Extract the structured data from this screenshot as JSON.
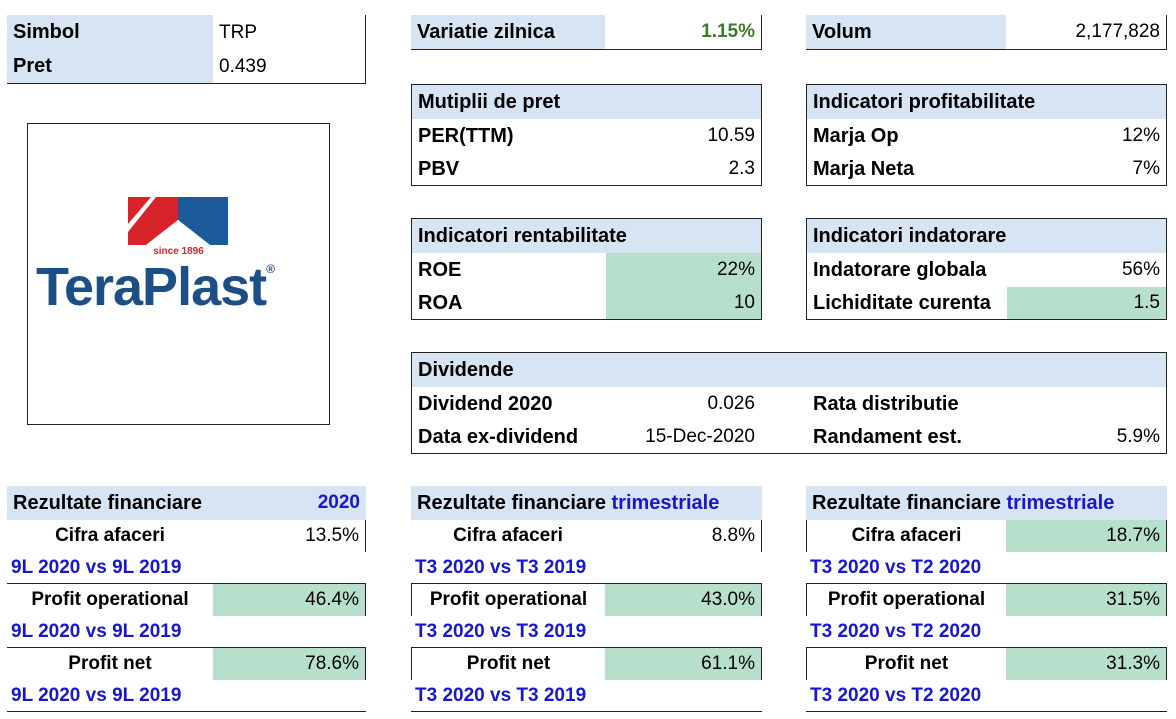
{
  "info": {
    "simbol_label": "Simbol",
    "simbol_value": "TRP",
    "pret_label": "Pret",
    "pret_value": "0.439"
  },
  "variatie": {
    "label": "Variatie zilnica",
    "value": "1.15%"
  },
  "volum": {
    "label": "Volum",
    "value": "2,177,828"
  },
  "logo": {
    "since": "since 1896",
    "brand": "TeraPlast",
    "reg": "®"
  },
  "multipli": {
    "title": "Mutiplii de pret",
    "rows": [
      {
        "label": "PER(TTM)",
        "value": "10.59"
      },
      {
        "label": "PBV",
        "value": "2.3"
      }
    ]
  },
  "profitabilitate": {
    "title": "Indicatori profitabilitate",
    "rows": [
      {
        "label": "Marja Op",
        "value": "12%"
      },
      {
        "label": "Marja Neta",
        "value": "7%"
      }
    ]
  },
  "rentabilitate": {
    "title": "Indicatori rentabilitate",
    "rows": [
      {
        "label": "ROE",
        "value": "22%"
      },
      {
        "label": "ROA",
        "value": "10"
      }
    ]
  },
  "indatorare": {
    "title": "Indicatori indatorare",
    "rows": [
      {
        "label": "Indatorare globala",
        "value": "56%"
      },
      {
        "label": "Lichiditate curenta",
        "value": "1.5"
      }
    ]
  },
  "dividende": {
    "title": "Dividende",
    "dividend_label": "Dividend 2020",
    "dividend_value": "0.026",
    "exdiv_label": "Data ex-dividend",
    "exdiv_value": "15-Dec-2020",
    "rata_label": "Rata distributie",
    "rata_value": "",
    "randament_label": "Randament est.",
    "randament_value": "5.9%"
  },
  "rezultate_anuale": {
    "title": "Rezultate financiare",
    "period": "2020",
    "comparison": "9L 2020 vs 9L 2019",
    "rows": [
      {
        "label": "Cifra afaceri",
        "value": "13.5%"
      },
      {
        "label": "Profit operational",
        "value": "46.4%"
      },
      {
        "label": "Profit net",
        "value": "78.6%"
      }
    ]
  },
  "rezultate_t3": {
    "title": "Rezultate financiare",
    "period": "trimestriale",
    "comparison": "T3 2020 vs T3 2019",
    "rows": [
      {
        "label": "Cifra afaceri",
        "value": "8.8%"
      },
      {
        "label": "Profit operational",
        "value": "43.0%"
      },
      {
        "label": "Profit net",
        "value": "61.1%"
      }
    ]
  },
  "rezultate_t2": {
    "title": "Rezultate financiare",
    "period": "trimestriale",
    "comparison": "T3 2020 vs T2 2020",
    "rows": [
      {
        "label": "Cifra afaceri",
        "value": "18.7%"
      },
      {
        "label": "Profit operational",
        "value": "31.5%"
      },
      {
        "label": "Profit net",
        "value": "31.3%"
      }
    ]
  },
  "colors": {
    "header": "#d6e4f4",
    "highlight": "#b7e0cc",
    "blue_text": "#1717d0",
    "green_text": "#3b7a2a"
  }
}
